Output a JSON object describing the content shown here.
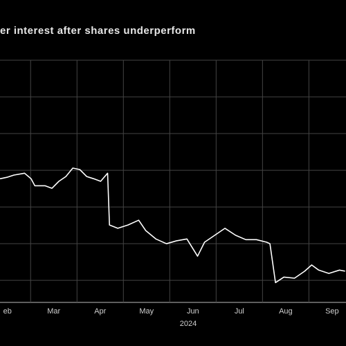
{
  "chart_data": {
    "type": "line",
    "title": "er interest after shares underperform",
    "x_axis_label": "2024",
    "xlim": [
      1.34,
      8.8
    ],
    "ylim": [
      -0.6,
      6
    ],
    "xticks": [
      {
        "value": 1.5,
        "label": "eb"
      },
      {
        "value": 2.5,
        "label": "Mar"
      },
      {
        "value": 3.5,
        "label": "Apr"
      },
      {
        "value": 4.5,
        "label": "May"
      },
      {
        "value": 5.5,
        "label": "Jun"
      },
      {
        "value": 6.5,
        "label": "Jul"
      },
      {
        "value": 7.5,
        "label": "Aug"
      },
      {
        "value": 8.5,
        "label": "Sep"
      }
    ],
    "xgrid": [
      2,
      3,
      4,
      5,
      6,
      7,
      8
    ],
    "ygrid": [
      0,
      1,
      2,
      3,
      4,
      5,
      6
    ],
    "grid": true,
    "series": [
      {
        "color": "#ffffff",
        "x": [
          1.34,
          1.49,
          1.64,
          1.87,
          2.01,
          2.09,
          2.31,
          2.46,
          2.61,
          2.76,
          2.91,
          3.06,
          3.21,
          3.36,
          3.51,
          3.66,
          3.7,
          3.88,
          4.1,
          4.33,
          4.48,
          4.7,
          4.93,
          5.15,
          5.37,
          5.6,
          5.75,
          5.97,
          6.19,
          6.42,
          6.64,
          6.87,
          7.09,
          7.16,
          7.28,
          7.46,
          7.69,
          7.91,
          8.06,
          8.21,
          8.43,
          8.66,
          8.78
        ],
        "values": [
          2.77,
          2.81,
          2.87,
          2.92,
          2.77,
          2.58,
          2.58,
          2.51,
          2.7,
          2.83,
          3.06,
          3.02,
          2.83,
          2.77,
          2.7,
          2.92,
          1.51,
          1.42,
          1.51,
          1.64,
          1.36,
          1.13,
          1.0,
          1.08,
          1.13,
          0.66,
          1.04,
          1.23,
          1.42,
          1.23,
          1.11,
          1.11,
          1.04,
          1.0,
          -0.06,
          0.09,
          0.06,
          0.25,
          0.42,
          0.28,
          0.19,
          0.28,
          0.25
        ]
      }
    ]
  }
}
